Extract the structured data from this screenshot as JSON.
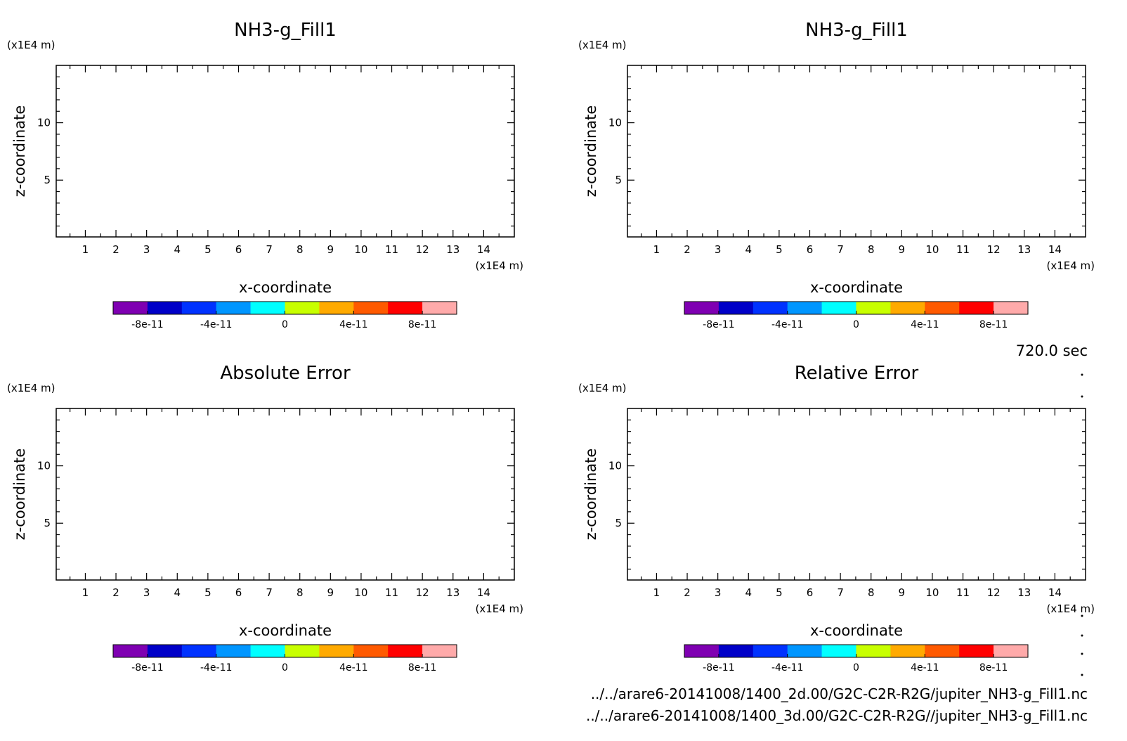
{
  "time_label": "720.0 sec",
  "file_paths": [
    "../../arare6-20141008/1400_2d.00/G2C-C2R-R2G/jupiter_NH3-g_Fill1.nc",
    "../../arare6-20141008/1400_3d.00/G2C-C2R-R2G//jupiter_NH3-g_Fill1.nc"
  ],
  "colorbar": {
    "colors": [
      "#7f00b2",
      "#0000c8",
      "#0032ff",
      "#0096ff",
      "#00ffff",
      "#c8ff00",
      "#ffaa00",
      "#ff5a00",
      "#ff0000",
      "#ffaaaa"
    ],
    "tick_labels": [
      "-8e-11",
      "-4e-11",
      "0",
      "4e-11",
      "8e-11"
    ]
  },
  "chart_data": [
    {
      "type": "heatmap",
      "title": "NH3-g_Fill1",
      "xlabel": "x-coordinate",
      "ylabel": "z-coordinate",
      "x_unit": "(x1E4 m)",
      "y_unit": "(x1E4 m)",
      "x_ticks": [
        1,
        2,
        3,
        4,
        5,
        6,
        7,
        8,
        9,
        10,
        11,
        12,
        13,
        14
      ],
      "y_ticks": [
        5,
        10
      ],
      "xlim": [
        0.05,
        15
      ],
      "ylim": [
        0.05,
        15
      ],
      "values": []
    },
    {
      "type": "heatmap",
      "title": "NH3-g_Fill1",
      "xlabel": "x-coordinate",
      "ylabel": "z-coordinate",
      "x_unit": "(x1E4 m)",
      "y_unit": "(x1E4 m)",
      "x_ticks": [
        1,
        2,
        3,
        4,
        5,
        6,
        7,
        8,
        9,
        10,
        11,
        12,
        13,
        14
      ],
      "y_ticks": [
        5,
        10
      ],
      "xlim": [
        0.05,
        15
      ],
      "ylim": [
        0.05,
        15
      ],
      "values": []
    },
    {
      "type": "heatmap",
      "title": "Absolute Error",
      "xlabel": "x-coordinate",
      "ylabel": "z-coordinate",
      "x_unit": "(x1E4 m)",
      "y_unit": "(x1E4 m)",
      "x_ticks": [
        1,
        2,
        3,
        4,
        5,
        6,
        7,
        8,
        9,
        10,
        11,
        12,
        13,
        14
      ],
      "y_ticks": [
        5,
        10
      ],
      "xlim": [
        0.05,
        15
      ],
      "ylim": [
        0.05,
        15
      ],
      "values": []
    },
    {
      "type": "heatmap",
      "title": "Relative Error",
      "xlabel": "x-coordinate",
      "ylabel": "z-coordinate",
      "x_unit": "(x1E4 m)",
      "y_unit": "(x1E4 m)",
      "x_ticks": [
        1,
        2,
        3,
        4,
        5,
        6,
        7,
        8,
        9,
        10,
        11,
        12,
        13,
        14
      ],
      "y_ticks": [
        5,
        10
      ],
      "xlim": [
        0.05,
        15
      ],
      "ylim": [
        0.05,
        15
      ],
      "values": []
    }
  ]
}
